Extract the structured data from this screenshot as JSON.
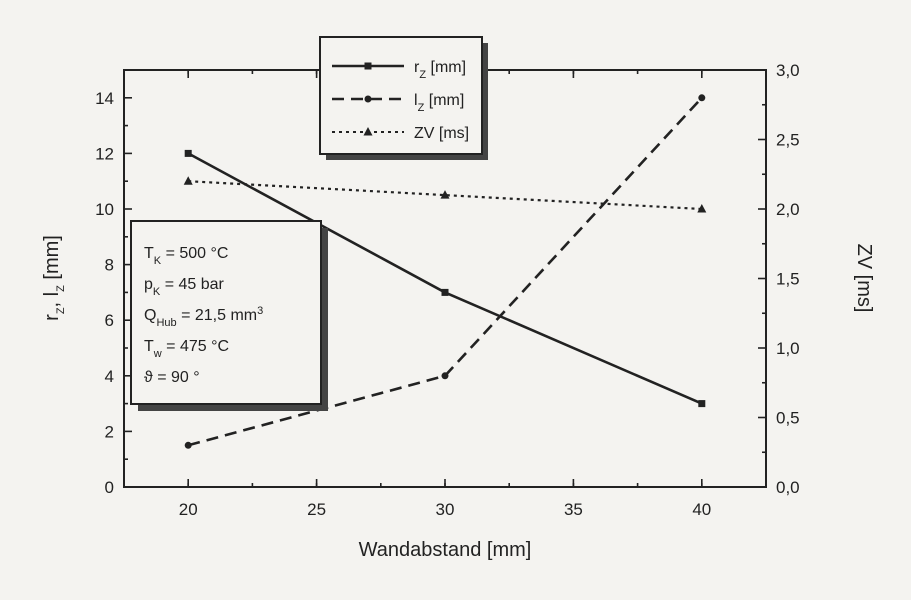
{
  "chart_data": {
    "type": "line",
    "x": [
      20,
      30,
      40
    ],
    "xlabel": "Wandabstand [mm]",
    "xlim": [
      17.5,
      42.5
    ],
    "xticks": [
      "20",
      "25",
      "30",
      "35",
      "40"
    ],
    "ylabel_left": {
      "base": "r",
      "sub1": "Z",
      "sep": ", l",
      "sub2": "Z",
      "unit": " [mm]"
    },
    "ylim_left": [
      0,
      15
    ],
    "yticks_left": [
      "0",
      "2",
      "4",
      "6",
      "8",
      "10",
      "12",
      "14"
    ],
    "ylabel_right": "ZV [ms]",
    "ylim_right": [
      0,
      3.0
    ],
    "yticks_right": [
      "0,0",
      "0,5",
      "1,0",
      "1,5",
      "2,0",
      "2,5",
      "3,0"
    ],
    "grid": false,
    "legend_position": "top-center",
    "series": [
      {
        "name": "r",
        "sub": "Z",
        "unit": " [mm]",
        "axis": "left",
        "style": "solid",
        "marker": "square",
        "values": [
          12,
          7,
          3
        ]
      },
      {
        "name": "l",
        "sub": "Z",
        "unit": " [mm]",
        "axis": "left",
        "style": "dashed",
        "marker": "circle",
        "values": [
          1.5,
          4,
          14
        ]
      },
      {
        "name": "ZV [ms]",
        "sub": "",
        "unit": "",
        "axis": "right",
        "style": "dotted",
        "marker": "triangle",
        "values": [
          2.2,
          2.1,
          2.0
        ]
      }
    ],
    "annotation": [
      {
        "base": "T",
        "sub": "K",
        "rest": " = 500 °C",
        "sup": ""
      },
      {
        "base": "p",
        "sub": "K",
        "rest": " = 45 bar",
        "sup": ""
      },
      {
        "base": "Q",
        "sub": "Hub",
        "rest": " = 21,5 mm",
        "sup": "3"
      },
      {
        "base": "T",
        "sub": "w",
        "rest": " = 475 °C",
        "sup": ""
      },
      {
        "base": "ϑ",
        "sub": "",
        "rest": " = 90 °",
        "sup": ""
      }
    ]
  }
}
